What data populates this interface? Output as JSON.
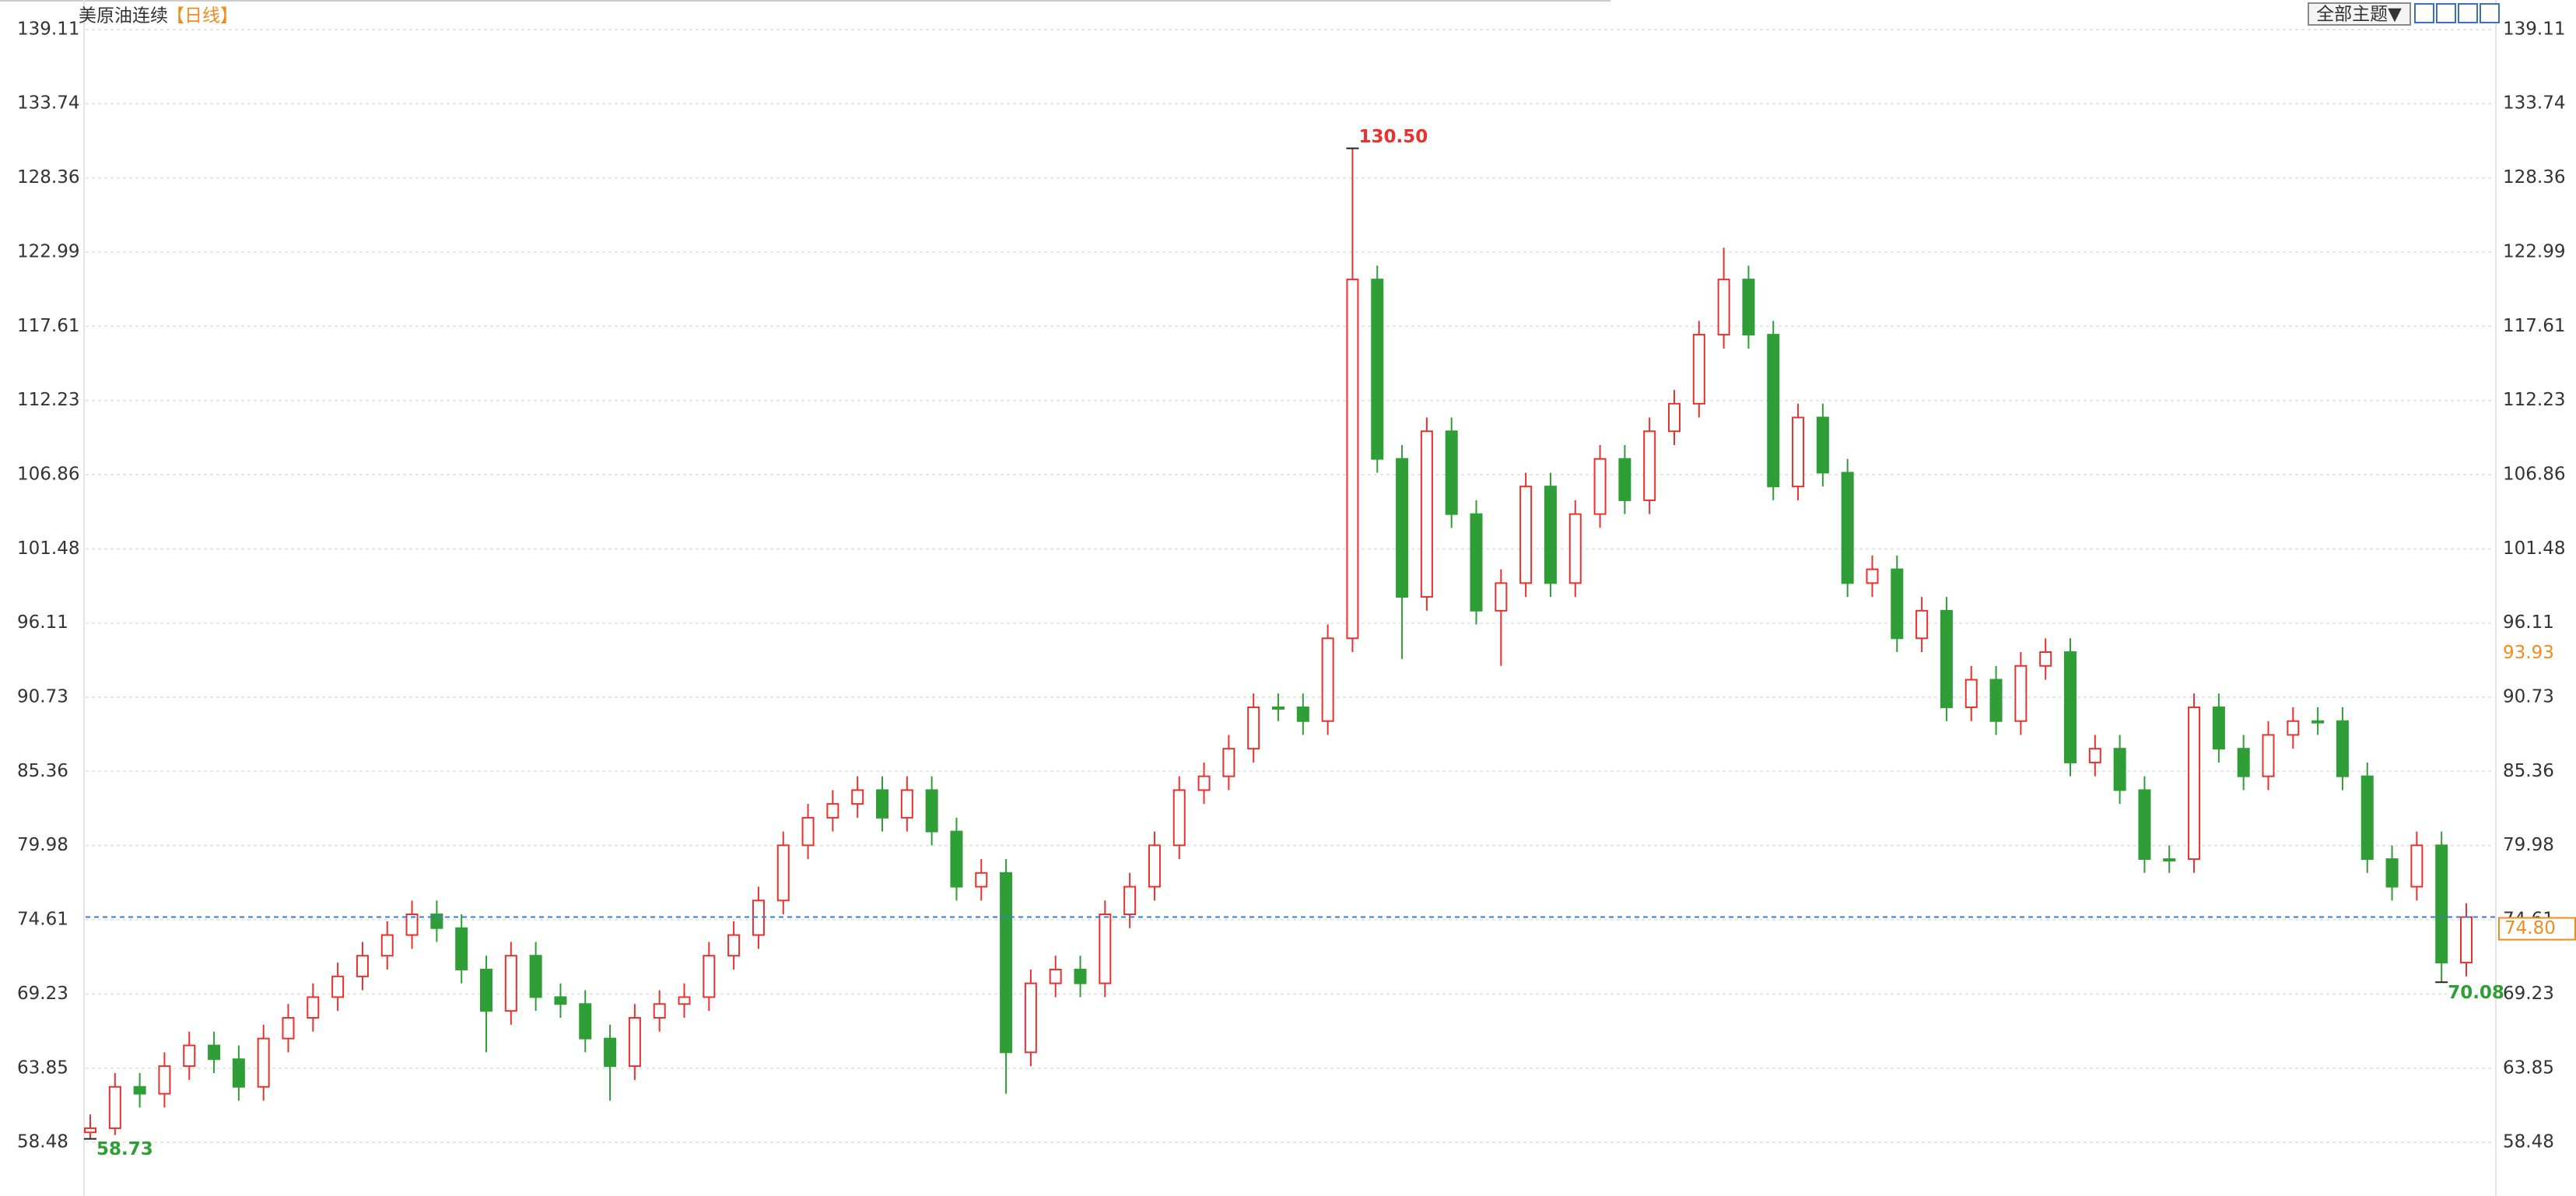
{
  "chart_data": {
    "type": "candlestick",
    "title": "美原油连续",
    "subtitle": "【日线】",
    "open": [
      59.2,
      59.5,
      62.5,
      62,
      64,
      65.5,
      64.5,
      62.5,
      66,
      67.5,
      69,
      70.5,
      72,
      73.5,
      75,
      74,
      71,
      68,
      72,
      69,
      68.5,
      66,
      64,
      67.5,
      68.5,
      69,
      72,
      73.5,
      76,
      80,
      82,
      83,
      84,
      82,
      84,
      81,
      77,
      78,
      65,
      70,
      71,
      70,
      75,
      77,
      80,
      84,
      85,
      87,
      90,
      90,
      89,
      95,
      121,
      108,
      98,
      110,
      104,
      97,
      99,
      106,
      99,
      104,
      108,
      105,
      110,
      112,
      117,
      121,
      117,
      106,
      111,
      107,
      99,
      100,
      95,
      97,
      90,
      92,
      89,
      93,
      94,
      86,
      87,
      84,
      79,
      79,
      90,
      87,
      85,
      88,
      89,
      89,
      85,
      79,
      77,
      80,
      71.5
    ],
    "high": [
      60.5,
      63.5,
      63.5,
      65,
      66.5,
      66.5,
      65.5,
      67,
      68.5,
      70,
      71.5,
      73,
      74.5,
      76,
      76,
      75,
      72,
      73,
      73,
      70,
      69.5,
      67,
      68.5,
      69.5,
      70,
      73,
      74.5,
      77,
      81,
      83,
      84,
      85,
      85,
      85,
      85,
      82,
      79,
      79,
      71,
      72,
      72,
      76,
      78,
      81,
      85,
      86,
      88,
      91,
      91,
      91,
      96,
      130.5,
      122,
      109,
      111,
      111,
      105,
      100,
      107,
      107,
      105,
      109,
      109,
      111,
      113,
      118,
      123.3,
      122,
      118,
      112,
      112,
      108,
      101,
      101,
      98,
      98,
      93,
      93,
      94,
      95,
      95,
      88,
      88,
      85,
      80,
      91,
      91,
      88,
      89,
      90,
      90,
      90,
      86,
      80,
      81,
      81,
      75.8
    ],
    "low": [
      58.73,
      59,
      61,
      61,
      63,
      63.5,
      61.5,
      61.5,
      65,
      66.5,
      68,
      69.5,
      71,
      72.5,
      73,
      70,
      65,
      67,
      68,
      67.5,
      65,
      61.5,
      63,
      66.5,
      67.5,
      68,
      71,
      72.5,
      75,
      79,
      81,
      82,
      81,
      81,
      80,
      76,
      76,
      62,
      64,
      69,
      69,
      69,
      74,
      76,
      79,
      83,
      84,
      86,
      89,
      88,
      88,
      94,
      107,
      93.5,
      97,
      103,
      96,
      93,
      98,
      98,
      98,
      103,
      104,
      104,
      109,
      111,
      116,
      116,
      105,
      105,
      106,
      98,
      98,
      94,
      94,
      89,
      89,
      88,
      88,
      92,
      85,
      85,
      83,
      78,
      78,
      78,
      86,
      84,
      84,
      87,
      88,
      84,
      78,
      76,
      76,
      70.08,
      70.5
    ],
    "close": [
      59.5,
      62.5,
      62,
      64,
      65.5,
      64.5,
      62.5,
      66,
      67.5,
      69,
      70.5,
      72,
      73.5,
      75,
      74,
      71,
      68,
      72,
      69,
      68.5,
      66,
      64,
      67.5,
      68.5,
      69,
      72,
      73.5,
      76,
      80,
      82,
      83,
      84,
      82,
      84,
      81,
      77,
      78,
      65,
      70,
      71,
      70,
      75,
      77,
      80,
      84,
      85,
      87,
      90,
      90,
      89,
      95,
      121,
      108,
      98,
      110,
      104,
      97,
      99,
      106,
      99,
      104,
      108,
      105,
      110,
      112,
      117,
      121,
      117,
      106,
      111,
      107,
      99,
      100,
      95,
      97,
      90,
      92,
      89,
      93,
      94,
      86,
      87,
      84,
      79,
      79,
      90,
      87,
      85,
      88,
      89,
      89,
      85,
      79,
      77,
      80,
      71.5,
      74.8
    ],
    "up_color": "#e8322f",
    "down_color": "#2f9e36",
    "ylim": [
      54.59,
      141.25
    ],
    "yticks": [
      58.48,
      63.85,
      69.23,
      74.61,
      79.98,
      85.36,
      90.73,
      96.11,
      101.48,
      106.86,
      112.23,
      117.61,
      122.99,
      128.36,
      133.74,
      139.11
    ],
    "grid": true,
    "annotations": [
      {
        "value": 130.5,
        "label": "130.50"
      },
      58.73,
      70.08
    ],
    "price_tags": [
      93.93
    ],
    "last_price": {
      "value": 74.8,
      "label": "74.80"
    },
    "accent_color": "#f08c1e",
    "last_line_color": "#3a7be0"
  },
  "toolbar": {
    "button": "全部主题▼"
  }
}
